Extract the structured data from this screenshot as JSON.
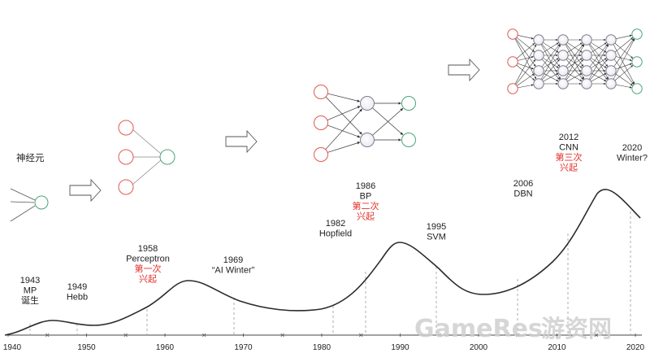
{
  "neuron_label": "神经元",
  "timeline": {
    "axis_years": [
      "1940",
      "1950",
      "1960",
      "1970",
      "1980",
      "1990",
      "2000",
      "2010",
      "2020"
    ],
    "events": [
      {
        "id": "1943",
        "lines": [
          "1943",
          "MP",
          "诞生"
        ],
        "highlight": []
      },
      {
        "id": "1949",
        "lines": [
          "1949",
          "Hebb"
        ],
        "highlight": []
      },
      {
        "id": "1958",
        "lines": [
          "1958",
          "Perceptron",
          "第一次",
          "兴起"
        ],
        "highlight": [
          2,
          3
        ]
      },
      {
        "id": "1969",
        "lines": [
          "1969",
          "“AI Winter”"
        ],
        "highlight": []
      },
      {
        "id": "1982",
        "lines": [
          "1982",
          "Hopfield"
        ],
        "highlight": []
      },
      {
        "id": "1986",
        "lines": [
          "1986",
          "BP",
          "第二次",
          "兴起"
        ],
        "highlight": [
          2,
          3
        ]
      },
      {
        "id": "1995",
        "lines": [
          "1995",
          "SVM"
        ],
        "highlight": []
      },
      {
        "id": "2006",
        "lines": [
          "2006",
          "DBN"
        ],
        "highlight": []
      },
      {
        "id": "2012",
        "lines": [
          "2012",
          "CNN",
          "第三次",
          "兴起"
        ],
        "highlight": [
          2,
          3
        ]
      },
      {
        "id": "2020",
        "lines": [
          "2020",
          "Winter?"
        ],
        "highlight": []
      }
    ]
  },
  "watermark": {
    "latin": "GameRes",
    "cn": "游资网"
  },
  "colors": {
    "input_node": "#e05a50",
    "output_node": "#4aa57a",
    "hidden_node": "#7d7d92",
    "curve": "#2b2b2b",
    "highlight_text": "#e0302a"
  }
}
